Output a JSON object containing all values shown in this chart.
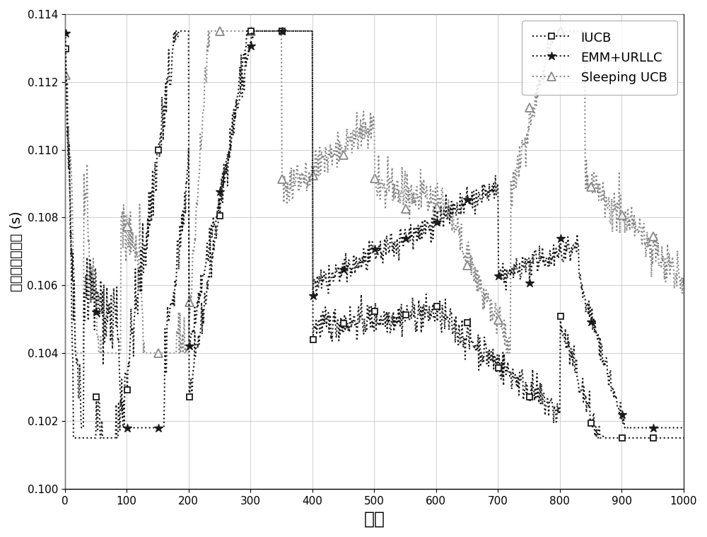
{
  "title": "",
  "xlabel": "时隙",
  "ylabel": "平均端到端时延 (s)",
  "xlim": [
    0,
    1000
  ],
  "ylim": [
    0.1,
    0.114
  ],
  "yticks": [
    0.1,
    0.102,
    0.104,
    0.106,
    0.108,
    0.11,
    0.112,
    0.114
  ],
  "xticks": [
    0,
    100,
    200,
    300,
    400,
    500,
    600,
    700,
    800,
    900,
    1000
  ],
  "grid": true,
  "background_color": "#ffffff",
  "legend_labels": [
    "IUCB",
    "EMM+URLLC",
    "Sleeping UCB"
  ],
  "line_colors": [
    "#1a1a1a",
    "#1a1a1a",
    "#888888"
  ]
}
